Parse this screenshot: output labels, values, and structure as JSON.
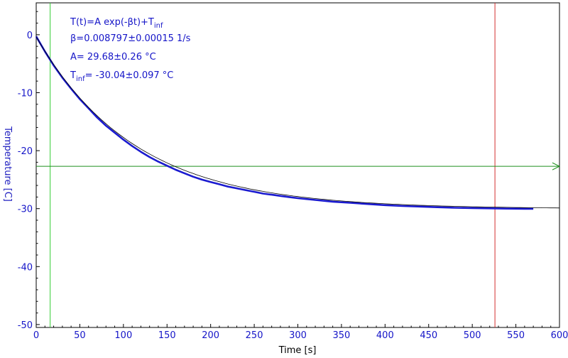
{
  "colors": {
    "data": "#1a1ad0",
    "fit": "#000000",
    "axis_label_y": "#2020c0",
    "tick": "#1515c8",
    "cursor_left": "#33cc33",
    "cursor_right": "#d43030",
    "hline": "#1f8f1f",
    "frame": "#000000"
  },
  "chart_data": {
    "type": "line",
    "xlabel": "Time [s]",
    "ylabel": "Temperature [C]",
    "xlim": [
      0,
      600
    ],
    "ylim": [
      -50.5,
      5.5
    ],
    "xticks": [
      0,
      50,
      100,
      150,
      200,
      250,
      300,
      350,
      400,
      450,
      500,
      550,
      600
    ],
    "yticks": [
      0,
      -10,
      -20,
      -30,
      -40,
      -50
    ],
    "grid": false,
    "fit": {
      "formula": "T(t)=A exp(-βt)+T_inf",
      "beta": 0.008797,
      "beta_err": 0.00015,
      "A": 29.68,
      "A_err": 0.26,
      "T_inf": -30.04,
      "T_inf_err": 0.097
    },
    "series": [
      {
        "x": [
          0,
          10,
          20,
          30,
          40,
          50,
          60,
          70,
          80,
          90,
          100,
          110,
          120,
          130,
          140,
          150,
          160,
          170,
          180,
          190,
          200,
          210,
          220,
          230,
          240,
          250,
          260,
          270,
          280,
          290,
          300,
          320,
          340,
          360,
          380,
          400,
          420,
          440,
          460,
          480,
          500,
          520,
          540,
          560,
          570
        ],
        "y": [
          -0.3,
          -2.9,
          -5.3,
          -7.4,
          -9.3,
          -11.1,
          -12.7,
          -14.3,
          -15.7,
          -16.9,
          -18.1,
          -19.2,
          -20.2,
          -21.1,
          -21.9,
          -22.6,
          -23.3,
          -23.9,
          -24.5,
          -25.0,
          -25.4,
          -25.8,
          -26.2,
          -26.5,
          -26.8,
          -27.1,
          -27.4,
          -27.6,
          -27.8,
          -28.0,
          -28.2,
          -28.5,
          -28.8,
          -29.0,
          -29.2,
          -29.4,
          -29.55,
          -29.65,
          -29.75,
          -29.85,
          -29.9,
          -29.95,
          -30.0,
          -30.02,
          -30.03
        ]
      }
    ],
    "annotations": {
      "line1": "T(t)=A exp(-βt)+T",
      "line1_sub": "inf",
      "line2": "β=0.008797±0.00015 1/s",
      "line3": "A= 29.68±0.26 °C",
      "line4_pre": "T",
      "line4_sub": "inf",
      "line4_post": "= -30.04±0.097 °C"
    },
    "cursors": {
      "vertical_left_x": 16,
      "vertical_right_x": 526,
      "horizontal_y": -22.7
    }
  }
}
